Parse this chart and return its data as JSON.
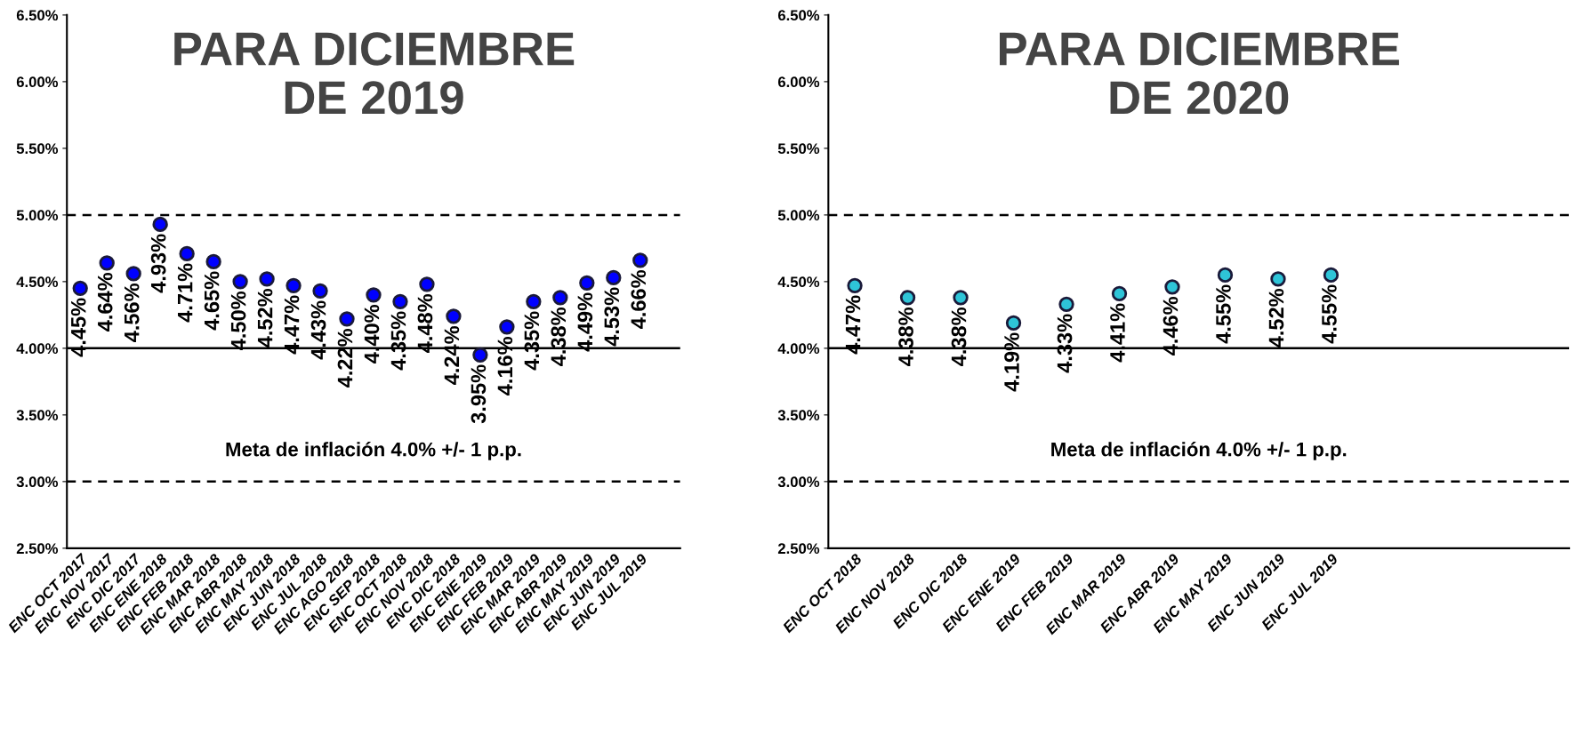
{
  "chart_data": [
    {
      "type": "scatter",
      "title": "PARA DICIEMBRE\nDE 2019",
      "categories": [
        "ENC OCT 2017",
        "ENC NOV 2017",
        "ENC DIC 2017",
        "ENC ENE 2018",
        "ENC FEB 2018",
        "ENC MAR 2018",
        "ENC ABR 2018",
        "ENC MAY 2018",
        "ENC JUN 2018",
        "ENC JUL 2018",
        "ENC AGO 2018",
        "ENC SEP 2018",
        "ENC OCT 2018",
        "ENC NOV 2018",
        "ENC DIC 2018",
        "ENC ENE 2019",
        "ENC FEB 2019",
        "ENC MAR 2019",
        "ENC ABR 2019",
        "ENC MAY 2019",
        "ENC JUN 2019",
        "ENC JUL 2019",
        null
      ],
      "series": [
        {
          "color": "#0000ff",
          "values": [
            4.45,
            4.64,
            4.56,
            4.93,
            4.71,
            4.65,
            4.5,
            4.52,
            4.47,
            4.43,
            4.22,
            4.4,
            4.35,
            4.48,
            4.24,
            3.95,
            4.16,
            4.35,
            4.38,
            4.49,
            4.53,
            4.66,
            null
          ],
          "value_labels": [
            "4.45%",
            "4.64%",
            "4.56%",
            "4.93%",
            "4.71%",
            "4.65%",
            "4.50%",
            "4.52%",
            "4.47%",
            "4.43%",
            "4.22%",
            "4.40%",
            "4.35%",
            "4.48%",
            "4.24%",
            "3.95%",
            "4.16%",
            "4.35%",
            "4.38%",
            "4.49%",
            "4.53%",
            "4.66%",
            null
          ]
        }
      ],
      "marker": "circle",
      "grid": false,
      "ylim": [
        2.5,
        6.5
      ],
      "yticks": [
        {
          "value": 2.5,
          "label": "2.50%"
        },
        {
          "value": 3.0,
          "label": "3.00%"
        },
        {
          "value": 3.5,
          "label": "3.50%"
        },
        {
          "value": 4.0,
          "label": "4.00%"
        },
        {
          "value": 4.5,
          "label": "4.50%"
        },
        {
          "value": 5.0,
          "label": "5.00%"
        },
        {
          "value": 5.5,
          "label": "5.50%"
        },
        {
          "value": 6.0,
          "label": "6.00%"
        },
        {
          "value": 6.5,
          "label": "6.50%"
        }
      ],
      "ref_lines": [
        {
          "axis": "y",
          "value": 5.0,
          "line_style": "dashed",
          "color": "#000000"
        },
        {
          "axis": "y",
          "value": 4.0,
          "line_style": "solid",
          "color": "#000000"
        },
        {
          "axis": "y",
          "value": 3.0,
          "line_style": "dashed",
          "color": "#000000"
        }
      ],
      "annotations": [
        "Meta de inflación 4.0% +/- 1 p.p."
      ]
    },
    {
      "type": "scatter",
      "title": "PARA DICIEMBRE\nDE 2020",
      "categories": [
        "ENC OCT 2018",
        "ENC NOV 2018",
        "ENC DIC 2018",
        "ENC ENE 2019",
        "ENC FEB 2019",
        "ENC MAR 2019",
        "ENC ABR 2019",
        "ENC MAY 2019",
        "ENC JUN 2019",
        "ENC JUL 2019",
        null,
        null,
        null,
        null
      ],
      "series": [
        {
          "color": "#2ec4d8",
          "values": [
            4.47,
            4.38,
            4.38,
            4.19,
            4.33,
            4.41,
            4.46,
            4.55,
            4.52,
            4.55,
            null,
            null,
            null,
            null
          ],
          "value_labels": [
            "4.47%",
            "4.38%",
            "4.38%",
            "4.19%",
            "4.33%",
            "4.41%",
            "4.46%",
            "4.55%",
            "4.52%",
            "4.55%",
            null,
            null,
            null,
            null
          ]
        }
      ],
      "marker": "circle",
      "grid": false,
      "ylim": [
        2.5,
        6.5
      ],
      "yticks": [
        {
          "value": 2.5,
          "label": "2.50%"
        },
        {
          "value": 3.0,
          "label": "3.00%"
        },
        {
          "value": 3.5,
          "label": "3.50%"
        },
        {
          "value": 4.0,
          "label": "4.00%"
        },
        {
          "value": 4.5,
          "label": "4.50%"
        },
        {
          "value": 5.0,
          "label": "5.00%"
        },
        {
          "value": 5.5,
          "label": "5.50%"
        },
        {
          "value": 6.0,
          "label": "6.00%"
        },
        {
          "value": 6.5,
          "label": "6.50%"
        }
      ],
      "ref_lines": [
        {
          "axis": "y",
          "value": 5.0,
          "line_style": "dashed",
          "color": "#000000"
        },
        {
          "axis": "y",
          "value": 4.0,
          "line_style": "solid",
          "color": "#000000"
        },
        {
          "axis": "y",
          "value": 3.0,
          "line_style": "dashed",
          "color": "#000000"
        }
      ],
      "annotations": [
        "Meta de inflación 4.0% +/- 1 p.p."
      ]
    }
  ]
}
